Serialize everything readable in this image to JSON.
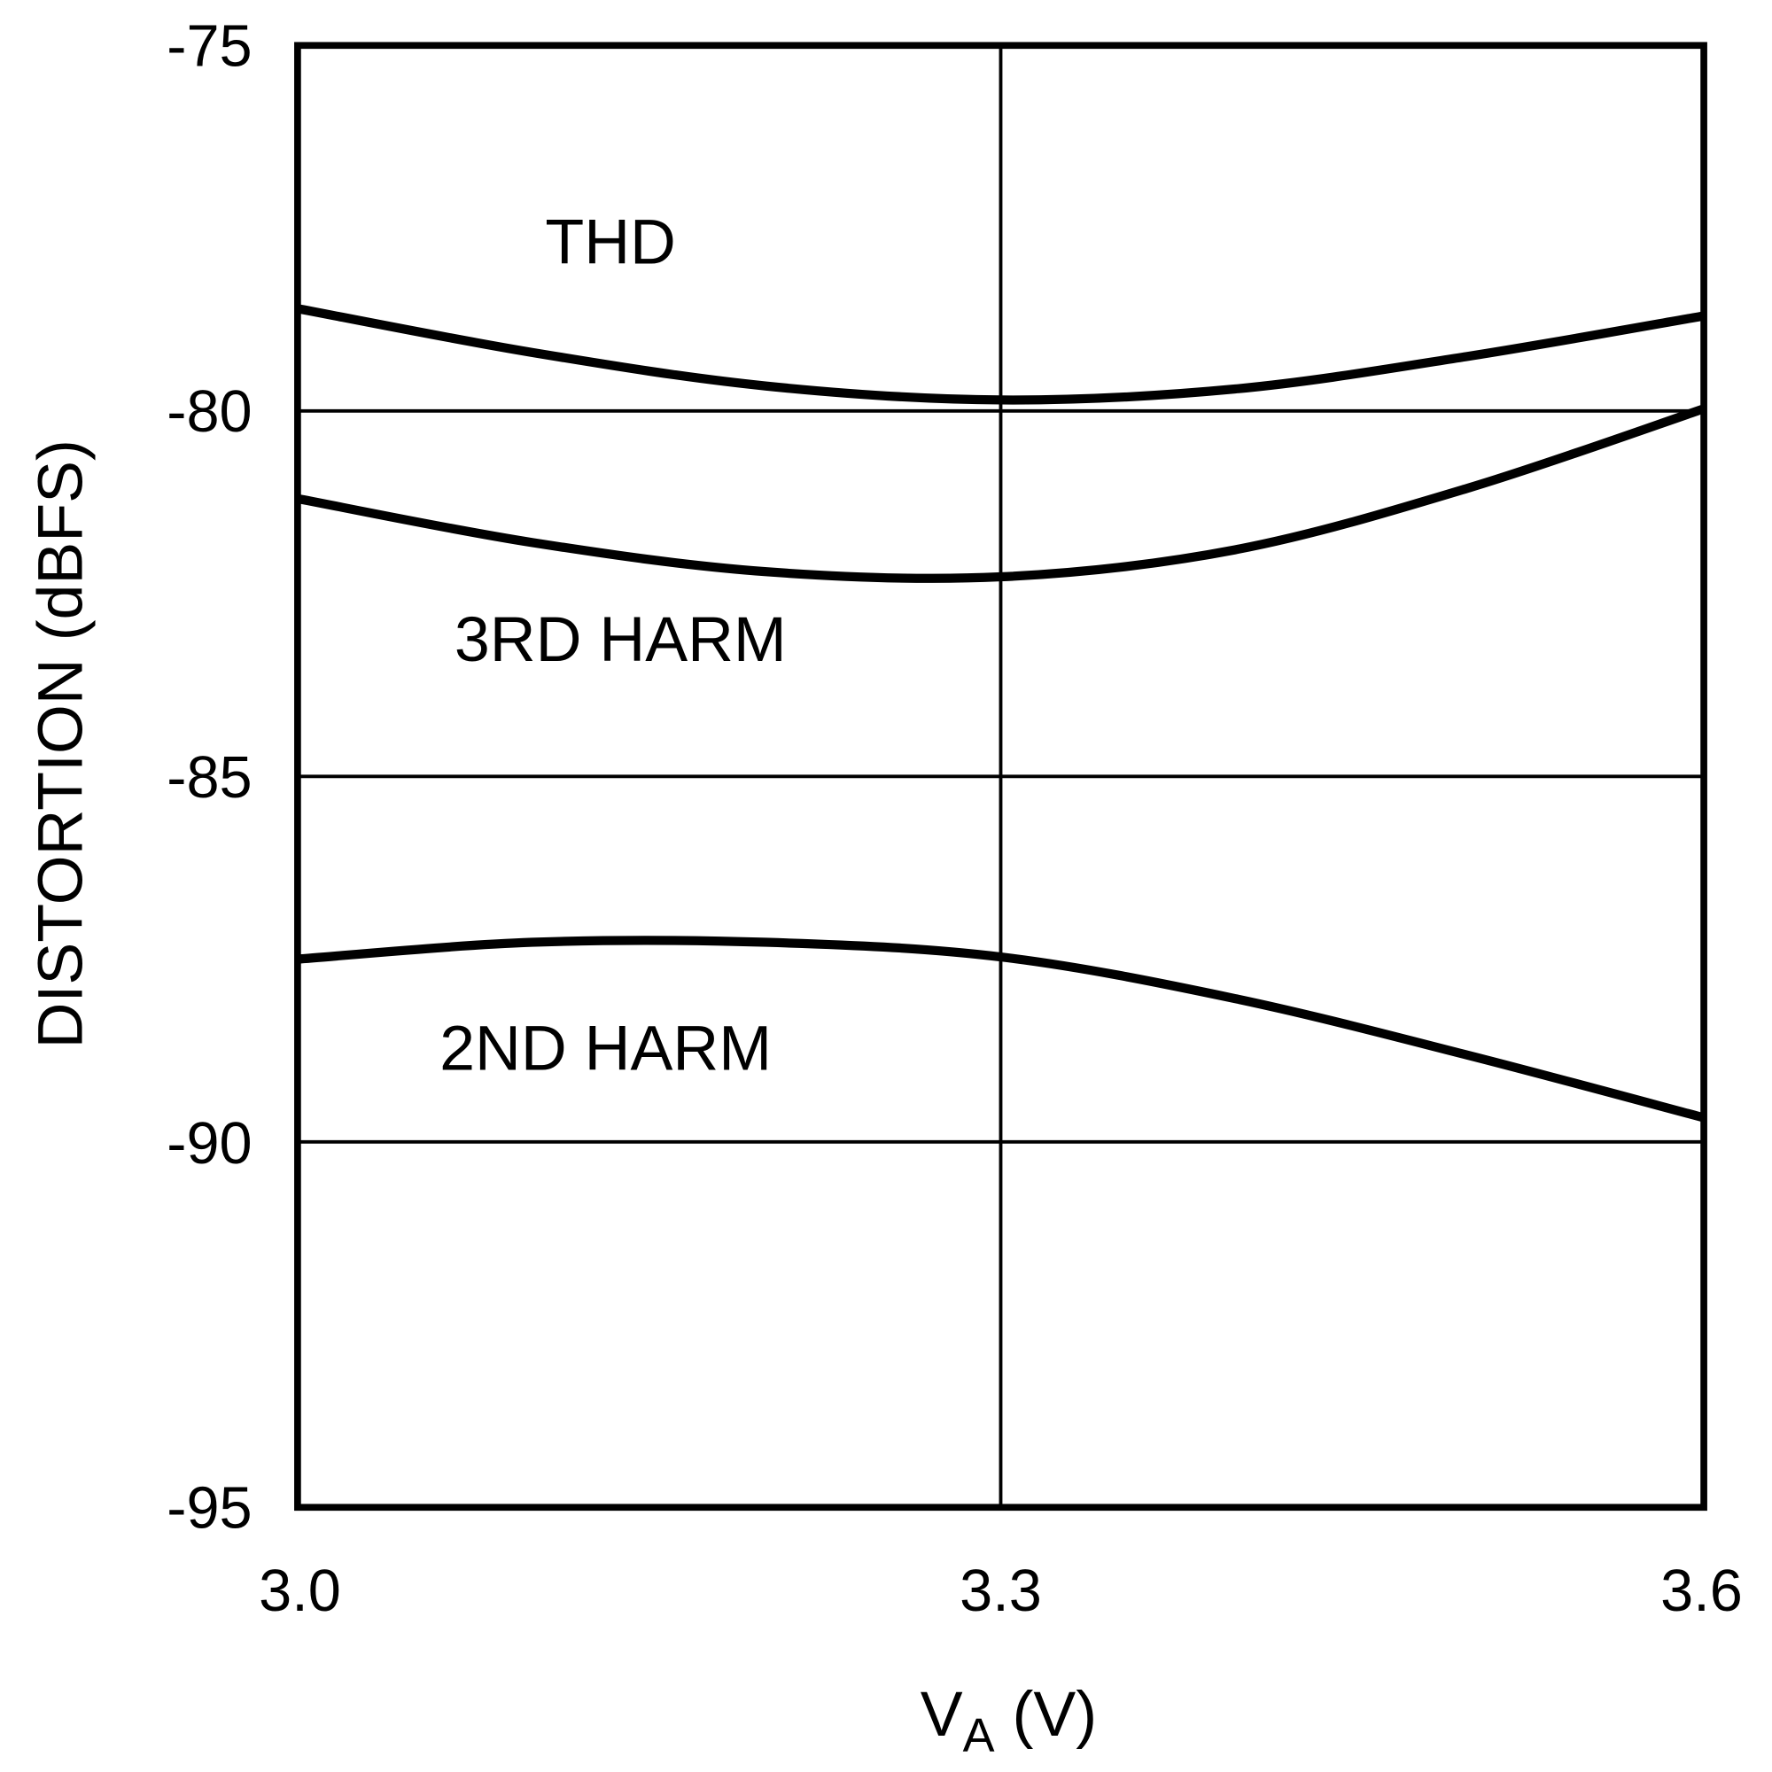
{
  "chart_data": {
    "type": "line",
    "title": "",
    "xlabel": {
      "main": "V",
      "sub": "A",
      "unit": " (V)"
    },
    "ylabel": "DISTORTION (dBFS)",
    "xlim": [
      3.0,
      3.6
    ],
    "ylim": [
      -95,
      -75
    ],
    "x_ticks": [
      "3.0",
      "3.3",
      "3.6"
    ],
    "y_ticks": [
      "-75",
      "-80",
      "-85",
      "-90",
      "-95"
    ],
    "grid": true,
    "colors": {
      "line": "#000000",
      "grid": "#000000",
      "background": "#ffffff"
    },
    "x": [
      3.0,
      3.1,
      3.2,
      3.3,
      3.4,
      3.5,
      3.6
    ],
    "series": [
      {
        "name": "THD",
        "values": [
          -78.6,
          -79.2,
          -79.66,
          -79.85,
          -79.7,
          -79.25,
          -78.7
        ]
      },
      {
        "name": "3RD HARM",
        "values": [
          -81.2,
          -81.8,
          -82.2,
          -82.27,
          -81.9,
          -81.05,
          -79.97
        ]
      },
      {
        "name": "2ND HARM",
        "values": [
          -87.5,
          -87.27,
          -87.27,
          -87.47,
          -88.04,
          -88.82,
          -89.67
        ]
      }
    ]
  }
}
